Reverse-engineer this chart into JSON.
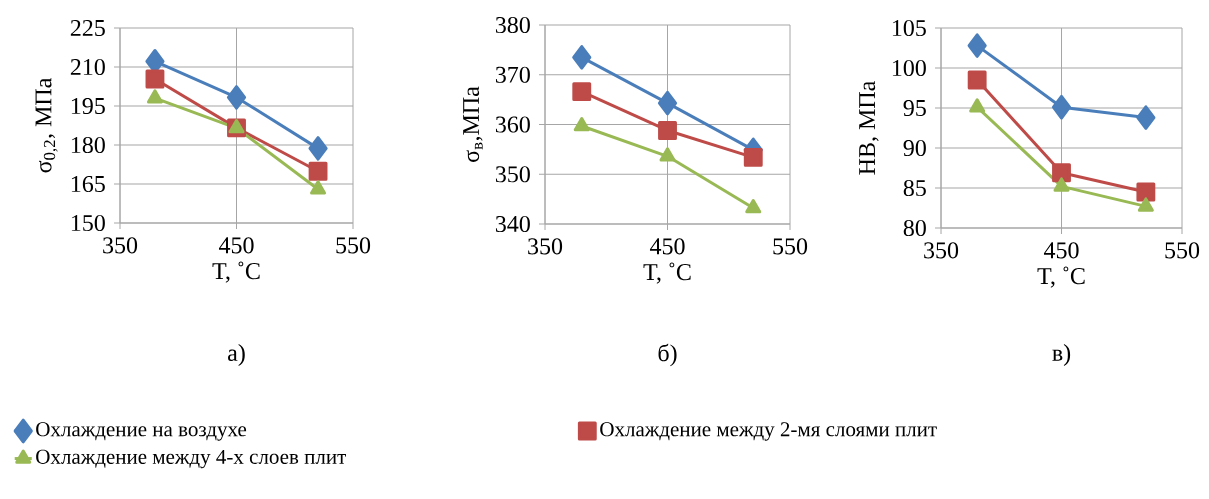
{
  "chart_data": [
    {
      "type": "line",
      "xlabel": "T, ˚C",
      "ylabel": "σ$_{0,2}$, МПа",
      "annotations": [
        "а)"
      ],
      "x": [
        380,
        450,
        520
      ],
      "xlim": [
        350,
        550
      ],
      "xticks": [
        350,
        450,
        550
      ],
      "ylim": [
        150,
        225
      ],
      "yticks": [
        150,
        165,
        180,
        195,
        210,
        225
      ],
      "grid": true,
      "legend": "bottom",
      "series": [
        {
          "name": "Охлаждение на воздухе",
          "color": "#4a7ebb",
          "marker": "diamond",
          "values": [
            212.2,
            198.3,
            178.7
          ]
        },
        {
          "name": "Охлаждение между 2-мя слоями плит",
          "color": "#be4b48",
          "marker": "square",
          "values": [
            205.4,
            186.6,
            169.9
          ]
        },
        {
          "name": "Охлаждение между 4-х слоев плит",
          "color": "#98b954",
          "marker": "triangle",
          "values": [
            198,
            186.5,
            163
          ]
        }
      ]
    },
    {
      "type": "line",
      "xlabel": "T, ˚C",
      "ylabel": "σ$_{в}$,МПа",
      "annotations": [
        "б)"
      ],
      "x": [
        380,
        450,
        520
      ],
      "xlim": [
        350,
        550
      ],
      "xticks": [
        350,
        450,
        550
      ],
      "ylim": [
        340,
        380
      ],
      "yticks": [
        340,
        350,
        360,
        370,
        380
      ],
      "grid": true,
      "series": [
        {
          "color": "#4a7ebb",
          "marker": "diamond",
          "values": [
            373.5,
            364.3,
            354.9
          ]
        },
        {
          "color": "#be4b48",
          "marker": "square",
          "values": [
            366.6,
            358.8,
            353.4
          ]
        },
        {
          "color": "#98b954",
          "marker": "triangle",
          "values": [
            359.7,
            353.6,
            343.2
          ]
        }
      ]
    },
    {
      "type": "line",
      "xlabel": "T, ˚C",
      "ylabel": "HB, МПа",
      "annotations": [
        "в)"
      ],
      "x": [
        380,
        450,
        520
      ],
      "xlim": [
        350,
        550
      ],
      "xticks": [
        350,
        450,
        550
      ],
      "ylim": [
        80,
        105
      ],
      "yticks": [
        80,
        85,
        90,
        95,
        100,
        105
      ],
      "grid": true,
      "series": [
        {
          "color": "#4a7ebb",
          "marker": "diamond",
          "values": [
            102.8,
            95.1,
            93.8
          ]
        },
        {
          "color": "#be4b48",
          "marker": "square",
          "values": [
            98.5,
            86.9,
            84.5
          ]
        },
        {
          "color": "#98b954",
          "marker": "triangle",
          "values": [
            95.1,
            85.2,
            82.7
          ]
        }
      ]
    }
  ]
}
